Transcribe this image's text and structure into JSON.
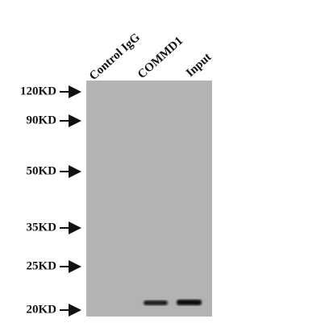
{
  "lanes": [
    "Control IgG",
    "COMMD1",
    "Input"
  ],
  "markers": [
    "120KD",
    "90KD",
    "50KD",
    "35KD",
    "25KD",
    "20KD"
  ]
}
